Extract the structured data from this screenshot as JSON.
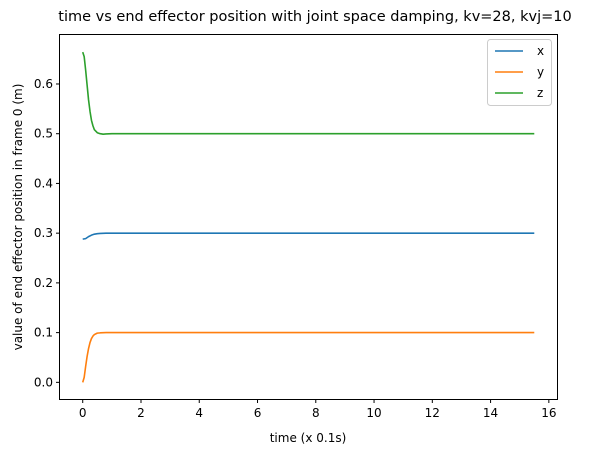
{
  "chart_data": {
    "type": "line",
    "title": "time vs end effector position with joint space damping, kv=28, kvj=10",
    "xlabel": "time (x 0.1s)",
    "ylabel": "value of end effector position in frame 0 (m)",
    "xlim": [
      -0.78,
      16.28
    ],
    "ylim": [
      -0.0335,
      0.6985
    ],
    "xticks": [
      0,
      2,
      4,
      6,
      8,
      10,
      12,
      14,
      16
    ],
    "xtick_labels": [
      "0",
      "2",
      "4",
      "6",
      "8",
      "10",
      "12",
      "14",
      "16"
    ],
    "yticks": [
      0.0,
      0.1,
      0.2,
      0.3,
      0.4,
      0.5,
      0.6
    ],
    "ytick_labels": [
      "0.0",
      "0.1",
      "0.2",
      "0.3",
      "0.4",
      "0.5",
      "0.6"
    ],
    "grid": false,
    "legend_position": "top-right",
    "series": [
      {
        "name": "x",
        "color": "#1f77b4",
        "x": [
          0,
          0.1,
          0.2,
          0.3,
          0.4,
          0.5,
          0.6,
          0.8,
          1.0,
          1.5,
          2,
          4,
          6,
          8,
          10,
          12,
          14,
          15.5
        ],
        "y": [
          0.288,
          0.289,
          0.293,
          0.296,
          0.298,
          0.299,
          0.2995,
          0.2999,
          0.3,
          0.3,
          0.3,
          0.3,
          0.3,
          0.3,
          0.3,
          0.3,
          0.3,
          0.3
        ]
      },
      {
        "name": "y",
        "color": "#ff7f0e",
        "x": [
          0,
          0.05,
          0.1,
          0.15,
          0.2,
          0.25,
          0.3,
          0.35,
          0.4,
          0.5,
          0.6,
          0.7,
          0.8,
          1.0,
          1.5,
          2,
          4,
          6,
          8,
          10,
          12,
          14,
          15.5
        ],
        "y": [
          0.0,
          0.01,
          0.032,
          0.052,
          0.068,
          0.08,
          0.088,
          0.093,
          0.096,
          0.099,
          0.0995,
          0.0998,
          0.1,
          0.1,
          0.1,
          0.1,
          0.1,
          0.1,
          0.1,
          0.1,
          0.1,
          0.1,
          0.1
        ]
      },
      {
        "name": "z",
        "color": "#2ca02c",
        "x": [
          0,
          0.05,
          0.1,
          0.15,
          0.2,
          0.25,
          0.3,
          0.35,
          0.4,
          0.5,
          0.6,
          0.7,
          0.8,
          1.0,
          1.5,
          2,
          4,
          6,
          8,
          10,
          12,
          14,
          15.5
        ],
        "y": [
          0.664,
          0.655,
          0.628,
          0.598,
          0.568,
          0.545,
          0.527,
          0.516,
          0.508,
          0.502,
          0.5,
          0.499,
          0.4995,
          0.5,
          0.5,
          0.5,
          0.5,
          0.5,
          0.5,
          0.5,
          0.5,
          0.5,
          0.5
        ]
      }
    ]
  }
}
